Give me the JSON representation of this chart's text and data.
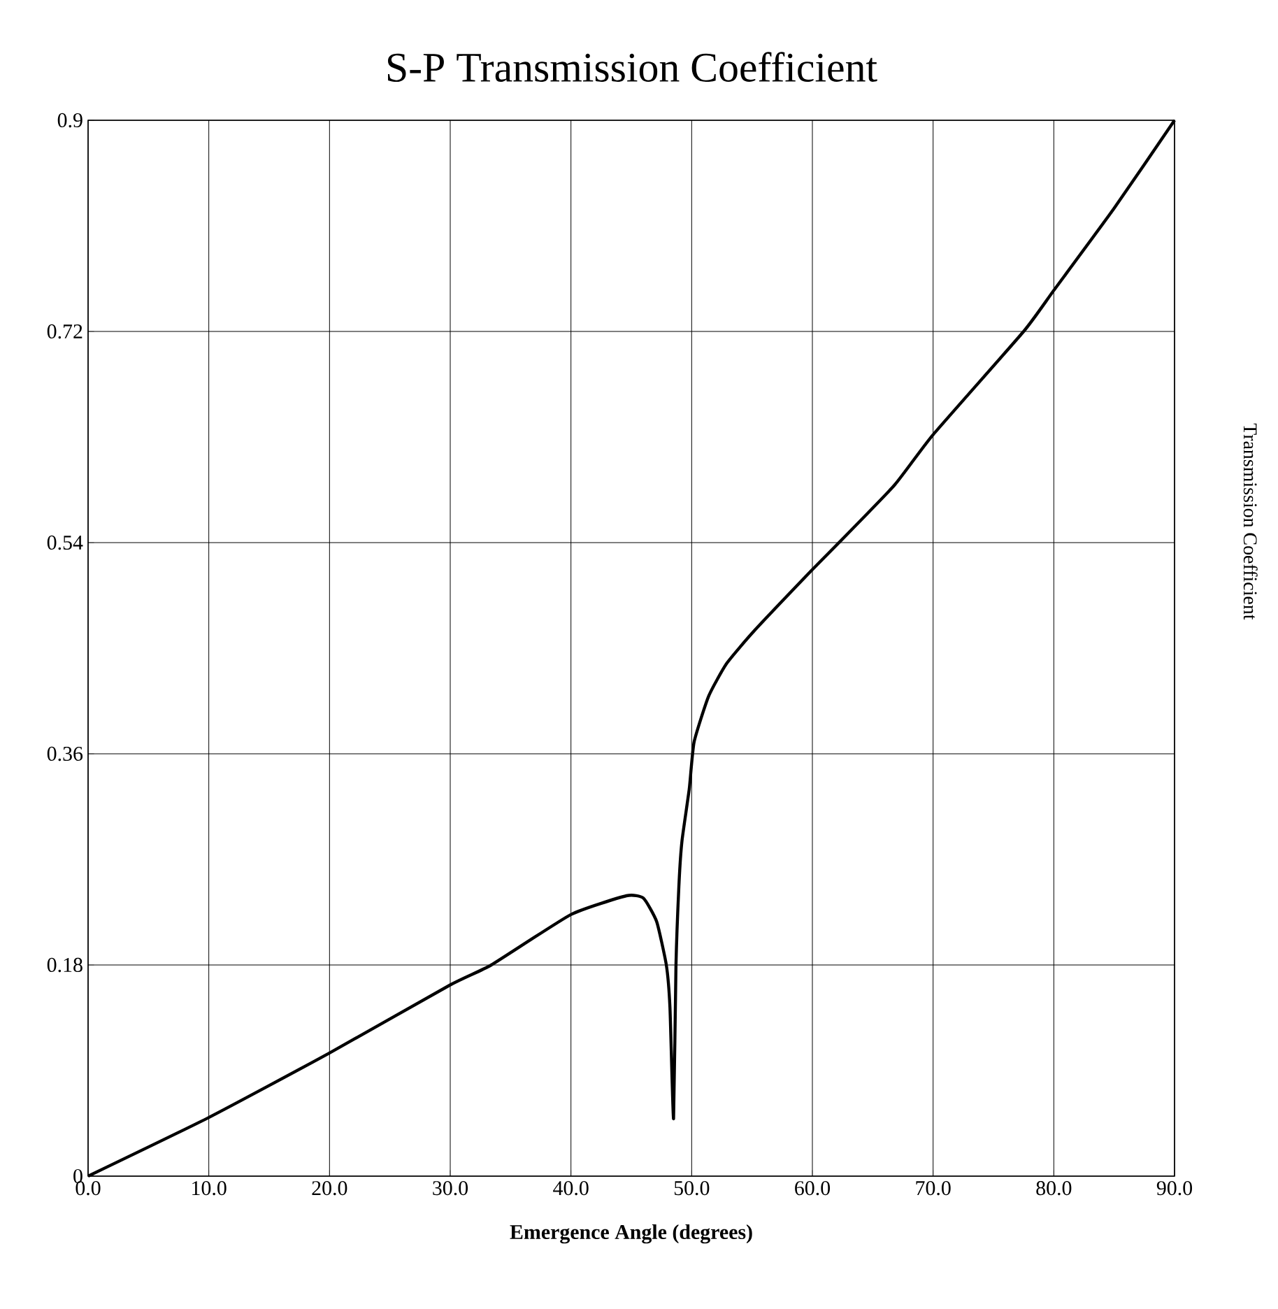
{
  "chart_data": {
    "type": "line",
    "title": "S-P Transmission Coefficient",
    "xlabel": "Emergence Angle (degrees)",
    "ylabel": "Transmission Coefficient",
    "x": [
      0,
      10,
      20,
      30,
      33.4,
      40,
      44.6,
      46,
      47.1,
      47.9,
      48.2,
      48.5,
      48.7,
      48.96,
      49.2,
      49.8,
      50.2,
      51.4,
      52.9,
      55.2,
      60,
      62.2,
      66.8,
      70,
      77.5,
      80,
      85,
      90
    ],
    "series": [
      {
        "color": "#000000",
        "values": [
          0,
          0.05,
          0.105,
          0.163,
          0.18,
          0.223,
          0.239,
          0.237,
          0.217,
          0.18,
          0.144,
          0.049,
          0.18,
          0.251,
          0.286,
          0.33,
          0.37,
          0.409,
          0.437,
          0.465,
          0.517,
          0.54,
          0.589,
          0.632,
          0.72,
          0.755,
          0.825,
          0.9
        ]
      }
    ],
    "xlim": [
      0,
      90
    ],
    "ylim": [
      0,
      0.9
    ],
    "xticks": [
      {
        "value": 0,
        "label": "0.0"
      },
      {
        "value": 10,
        "label": "10.0"
      },
      {
        "value": 20,
        "label": "20.0"
      },
      {
        "value": 30,
        "label": "30.0"
      },
      {
        "value": 40,
        "label": "40.0"
      },
      {
        "value": 50,
        "label": "50.0"
      },
      {
        "value": 60,
        "label": "60.0"
      },
      {
        "value": 70,
        "label": "70.0"
      },
      {
        "value": 80,
        "label": "80.0"
      },
      {
        "value": 90,
        "label": "90.0"
      }
    ],
    "yticks": [
      0,
      0.18,
      0.36,
      0.54,
      0.72,
      0.9
    ],
    "grid": true,
    "marker": "none",
    "line_style": "solid"
  }
}
